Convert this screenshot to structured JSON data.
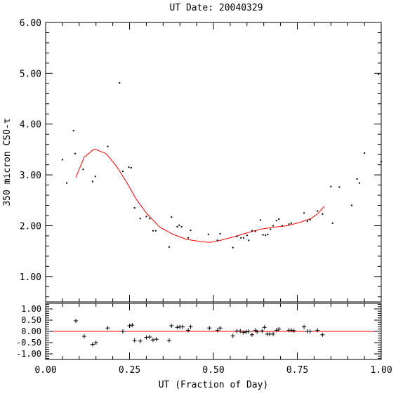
{
  "chart_data": [
    {
      "type": "scatter",
      "title": "UT Date: 20040329",
      "ylabel": "350 micron CSO-τ",
      "xlim": [
        0.0,
        1.0
      ],
      "ylim": [
        0.5,
        6.0
      ],
      "yticks": [
        "1.00",
        "2.00",
        "3.00",
        "4.00",
        "5.00",
        "6.00"
      ],
      "grid": false,
      "points": {
        "name": "",
        "color": "#000000",
        "x": [
          0.05,
          0.063,
          0.083,
          0.088,
          0.112,
          0.14,
          0.148,
          0.185,
          0.22,
          0.23,
          0.248,
          0.255,
          0.265,
          0.282,
          0.3,
          0.31,
          0.32,
          0.328,
          0.368,
          0.375,
          0.392,
          0.398,
          0.405,
          0.425,
          0.432,
          0.485,
          0.512,
          0.52,
          0.558,
          0.57,
          0.582,
          0.59,
          0.6,
          0.605,
          0.615,
          0.625,
          0.64,
          0.648,
          0.655,
          0.662,
          0.67,
          0.678,
          0.688,
          0.695,
          0.705,
          0.725,
          0.732,
          0.77,
          0.78,
          0.788,
          0.81,
          0.825,
          0.85,
          0.855,
          0.875,
          0.912,
          0.928,
          0.935,
          0.95,
          0.992,
          1.0
        ],
        "y": [
          3.3,
          2.84,
          3.87,
          3.42,
          3.11,
          2.87,
          2.97,
          3.56,
          4.81,
          3.07,
          3.15,
          3.14,
          2.35,
          2.14,
          2.18,
          2.14,
          1.9,
          1.9,
          1.58,
          2.17,
          1.98,
          2.01,
          1.98,
          1.76,
          1.91,
          1.83,
          1.71,
          1.84,
          1.57,
          1.79,
          1.76,
          1.76,
          1.81,
          1.71,
          1.9,
          1.89,
          2.11,
          1.82,
          1.81,
          1.83,
          1.93,
          2.0,
          2.1,
          2.13,
          2.0,
          2.03,
          2.05,
          2.25,
          2.09,
          2.12,
          2.29,
          2.23,
          2.77,
          2.05,
          2.76,
          2.4,
          2.92,
          2.84,
          3.43,
          4.98,
          3.26
        ]
      },
      "fit": {
        "name": "",
        "color": "#ff0000",
        "x": [
          0.09,
          0.115,
          0.145,
          0.18,
          0.21,
          0.24,
          0.27,
          0.3,
          0.34,
          0.38,
          0.42,
          0.46,
          0.49,
          0.52,
          0.56,
          0.6,
          0.64,
          0.68,
          0.72,
          0.76,
          0.79,
          0.81,
          0.83
        ],
        "y": [
          2.95,
          3.35,
          3.51,
          3.42,
          3.18,
          2.87,
          2.52,
          2.25,
          1.97,
          1.83,
          1.73,
          1.69,
          1.67,
          1.71,
          1.78,
          1.86,
          1.93,
          1.97,
          2.0,
          2.07,
          2.14,
          2.23,
          2.38
        ]
      }
    },
    {
      "type": "scatter",
      "xlabel": "UT (Fraction of Day)",
      "xlim": [
        0.0,
        1.0
      ],
      "ylim": [
        -1.25,
        1.25
      ],
      "xticks": [
        "0.00",
        "0.25",
        "0.50",
        "0.75",
        "1.00"
      ],
      "yticks": [
        "-1.00",
        "-0.50",
        "0.00",
        "0.50",
        "1.00"
      ],
      "grid": false,
      "zero_line_color": "#ff0000",
      "residuals": {
        "name": "",
        "color": "#000000",
        "x": [
          0.09,
          0.115,
          0.14,
          0.15,
          0.185,
          0.23,
          0.25,
          0.258,
          0.265,
          0.282,
          0.3,
          0.31,
          0.32,
          0.33,
          0.368,
          0.375,
          0.392,
          0.4,
          0.408,
          0.425,
          0.432,
          0.488,
          0.512,
          0.52,
          0.558,
          0.57,
          0.58,
          0.59,
          0.598,
          0.605,
          0.615,
          0.625,
          0.63,
          0.645,
          0.652,
          0.66,
          0.668,
          0.678,
          0.688,
          0.695,
          0.725,
          0.732,
          0.74,
          0.77,
          0.78,
          0.788,
          0.81,
          0.825
        ],
        "y": [
          0.47,
          -0.22,
          -0.58,
          -0.5,
          0.15,
          0.0,
          0.25,
          0.28,
          -0.4,
          -0.43,
          -0.27,
          -0.25,
          -0.38,
          -0.35,
          -0.4,
          0.25,
          0.18,
          0.2,
          0.2,
          0.05,
          0.2,
          0.15,
          0.05,
          0.15,
          -0.2,
          0.02,
          0.02,
          -0.05,
          -0.02,
          0.0,
          -0.15,
          0.05,
          -0.02,
          0.02,
          0.18,
          -0.12,
          -0.12,
          -0.12,
          0.05,
          0.1,
          0.05,
          0.05,
          0.03,
          0.2,
          0.0,
          0.0,
          0.05,
          -0.15
        ]
      }
    }
  ]
}
